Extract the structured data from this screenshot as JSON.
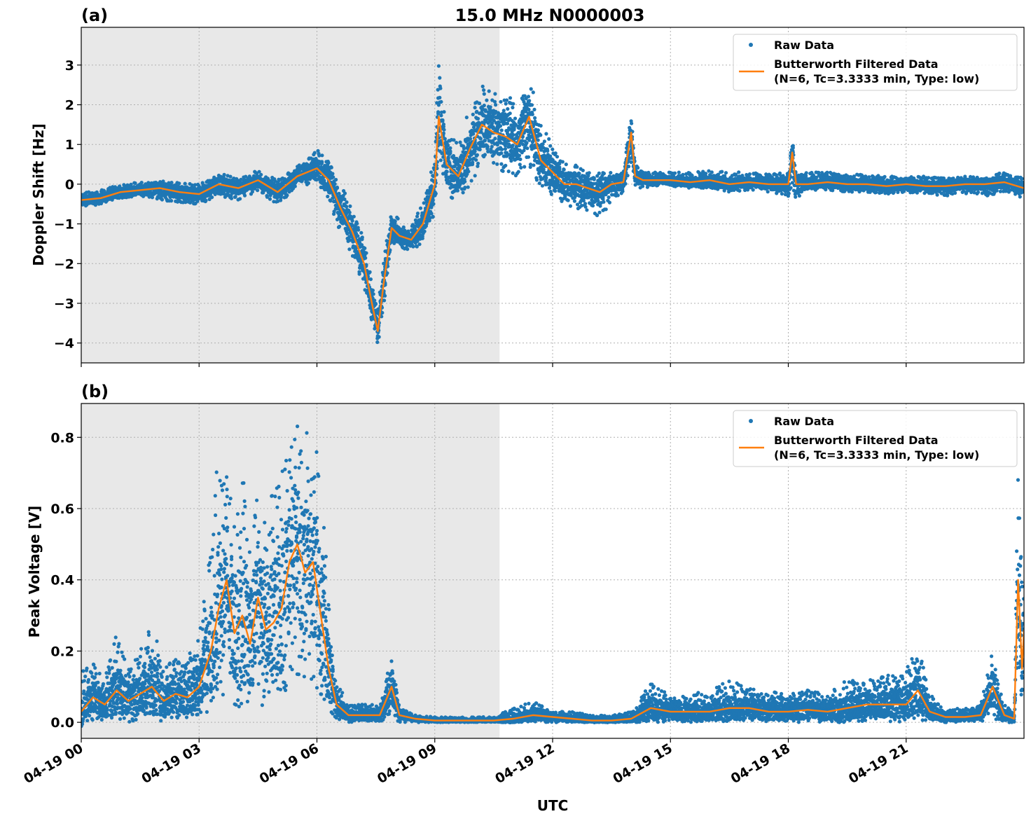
{
  "figure": {
    "title": "15.0 MHz N0000003",
    "xlabel": "UTC",
    "x_tick_labels": [
      "04-19 00",
      "04-19 03",
      "04-19 06",
      "04-19 09",
      "04-19 12",
      "04-19 15",
      "04-19 18",
      "04-19 21"
    ],
    "colors": {
      "raw": "#1f77b4",
      "filtered": "#ff7f0e",
      "shade": "#e8e8e8",
      "grid": "#b0b0b0"
    }
  },
  "chart_data": [
    {
      "type": "scatter",
      "panel_label": "(a)",
      "ylabel": "Doppler Shift [Hz]",
      "xlim_hours_utc": [
        0,
        24
      ],
      "ylim": [
        -4.5,
        3.95
      ],
      "y_ticks": [
        -4,
        -3,
        -2,
        -1,
        0,
        1,
        2,
        3
      ],
      "y_tick_labels": [
        "−4",
        "−3",
        "−2",
        "−1",
        "0",
        "1",
        "2",
        "3"
      ],
      "grid": true,
      "legend_position": "top-right",
      "shaded_region_hours": [
        0,
        10.65
      ],
      "legend": {
        "raw": "Raw Data",
        "filtered_line1": "Butterworth Filtered Data",
        "filtered_line2": "(N=6, Tc=3.3333 min, Type: low)"
      },
      "series": [
        {
          "name": "Butterworth Filtered Data",
          "kind": "line",
          "x": [
            0,
            0.5,
            1,
            1.5,
            2,
            2.5,
            3,
            3.5,
            4,
            4.5,
            5,
            5.5,
            6,
            6.3,
            6.6,
            6.9,
            7.2,
            7.4,
            7.55,
            7.7,
            7.9,
            8.1,
            8.4,
            8.7,
            9.0,
            9.1,
            9.3,
            9.6,
            9.9,
            10.2,
            10.5,
            10.8,
            11.1,
            11.4,
            11.7,
            12.0,
            12.3,
            12.6,
            12.9,
            13.2,
            13.5,
            13.8,
            14.0,
            14.1,
            14.3,
            14.6,
            15,
            15.5,
            16,
            16.5,
            17,
            17.5,
            18,
            18.1,
            18.2,
            18.5,
            19,
            19.5,
            20,
            20.5,
            21,
            21.5,
            22,
            22.5,
            23,
            23.5,
            24
          ],
          "y": [
            -0.4,
            -0.35,
            -0.2,
            -0.15,
            -0.1,
            -0.2,
            -0.25,
            0.0,
            -0.1,
            0.1,
            -0.2,
            0.2,
            0.4,
            0.1,
            -0.6,
            -1.2,
            -2.0,
            -3.0,
            -3.7,
            -2.5,
            -1.1,
            -1.3,
            -1.4,
            -1.0,
            0.0,
            1.7,
            0.5,
            0.2,
            0.9,
            1.5,
            1.3,
            1.2,
            1.0,
            1.7,
            0.6,
            0.3,
            0.0,
            0.0,
            -0.1,
            -0.2,
            0.0,
            0.05,
            1.3,
            0.2,
            0.1,
            0.1,
            0.1,
            0.05,
            0.1,
            0.0,
            0.05,
            0.0,
            0.0,
            0.8,
            0.0,
            0.0,
            0.05,
            0.0,
            0.0,
            -0.05,
            0.0,
            -0.05,
            -0.05,
            0.0,
            0.0,
            0.05,
            -0.1
          ]
        },
        {
          "name": "Raw Data",
          "kind": "scatter-band",
          "x": [
            0,
            0.5,
            1,
            1.5,
            2,
            2.5,
            3,
            3.5,
            4,
            4.5,
            5,
            5.5,
            6,
            6.3,
            6.6,
            6.9,
            7.2,
            7.4,
            7.55,
            7.7,
            7.9,
            8.1,
            8.4,
            8.7,
            9.0,
            9.1,
            9.3,
            9.6,
            9.9,
            10.2,
            10.5,
            10.8,
            11.1,
            11.4,
            11.7,
            12.0,
            12.3,
            12.6,
            12.9,
            13.2,
            13.5,
            13.8,
            14.0,
            14.1,
            14.3,
            14.6,
            15,
            15.5,
            16,
            16.5,
            17,
            17.5,
            18,
            18.1,
            18.2,
            18.5,
            19,
            19.5,
            20,
            20.5,
            21,
            21.5,
            22,
            22.5,
            23,
            23.5,
            24
          ],
          "y_low": [
            -0.6,
            -0.5,
            -0.35,
            -0.3,
            -0.4,
            -0.5,
            -0.5,
            -0.3,
            -0.4,
            -0.2,
            -0.5,
            -0.1,
            0.0,
            -0.5,
            -1.2,
            -1.8,
            -2.6,
            -3.5,
            -4.1,
            -3.1,
            -1.5,
            -1.6,
            -1.7,
            -1.5,
            -0.7,
            0.7,
            -0.3,
            -0.5,
            0.0,
            0.5,
            0.4,
            0.3,
            0.2,
            0.5,
            -0.2,
            -0.3,
            -0.5,
            -0.6,
            -0.7,
            -0.9,
            -0.4,
            -0.2,
            0.5,
            -0.1,
            -0.1,
            -0.05,
            -0.05,
            -0.1,
            -0.1,
            -0.2,
            -0.15,
            -0.2,
            -0.3,
            0.0,
            -0.4,
            -0.15,
            -0.15,
            -0.2,
            -0.2,
            -0.25,
            -0.2,
            -0.25,
            -0.3,
            -0.25,
            -0.3,
            -0.2,
            -0.35
          ],
          "y_high": [
            -0.2,
            -0.15,
            0.0,
            0.05,
            0.1,
            0.05,
            0.0,
            0.3,
            0.15,
            0.35,
            0.1,
            0.45,
            0.9,
            0.6,
            0.0,
            -0.6,
            -1.4,
            -2.4,
            -3.2,
            -1.8,
            -0.7,
            -0.9,
            -1.1,
            -0.4,
            0.8,
            3.4,
            1.3,
            1.0,
            2.0,
            2.5,
            2.4,
            2.3,
            2.0,
            2.7,
            1.6,
            1.0,
            0.5,
            0.5,
            0.3,
            0.3,
            0.3,
            0.3,
            1.8,
            0.5,
            0.3,
            0.3,
            0.3,
            0.3,
            0.35,
            0.3,
            0.3,
            0.25,
            0.3,
            1.25,
            0.3,
            0.3,
            0.3,
            0.25,
            0.25,
            0.2,
            0.2,
            0.2,
            0.2,
            0.2,
            0.2,
            0.3,
            0.15
          ]
        }
      ]
    },
    {
      "type": "scatter",
      "panel_label": "(b)",
      "ylabel": "Peak Voltage [V]",
      "xlim_hours_utc": [
        0,
        24
      ],
      "ylim": [
        -0.045,
        0.895
      ],
      "y_ticks": [
        0.0,
        0.2,
        0.4,
        0.6,
        0.8
      ],
      "y_tick_labels": [
        "0.0",
        "0.2",
        "0.4",
        "0.6",
        "0.8"
      ],
      "grid": true,
      "legend_position": "top-right",
      "shaded_region_hours": [
        0,
        10.65
      ],
      "legend": {
        "raw": "Raw Data",
        "filtered_line1": "Butterworth Filtered Data",
        "filtered_line2": "(N=6, Tc=3.3333 min, Type: low)"
      },
      "series": [
        {
          "name": "Butterworth Filtered Data",
          "kind": "line",
          "x": [
            0,
            0.3,
            0.6,
            0.9,
            1.2,
            1.5,
            1.8,
            2.1,
            2.4,
            2.7,
            3.0,
            3.3,
            3.5,
            3.7,
            3.9,
            4.1,
            4.3,
            4.5,
            4.7,
            4.9,
            5.1,
            5.3,
            5.5,
            5.7,
            5.9,
            6.1,
            6.3,
            6.5,
            6.8,
            7.2,
            7.6,
            7.9,
            8.1,
            8.5,
            9.0,
            9.5,
            10.0,
            10.5,
            11.0,
            11.5,
            12.0,
            12.5,
            13.0,
            13.5,
            14.0,
            14.5,
            15.0,
            15.5,
            16.0,
            16.5,
            17.0,
            17.5,
            18.0,
            18.5,
            19.0,
            19.5,
            20.0,
            20.5,
            21.0,
            21.3,
            21.6,
            22.0,
            22.5,
            22.9,
            23.2,
            23.5,
            23.75,
            23.85,
            23.95,
            24.0
          ],
          "y": [
            0.03,
            0.07,
            0.05,
            0.09,
            0.06,
            0.08,
            0.1,
            0.06,
            0.08,
            0.07,
            0.1,
            0.2,
            0.32,
            0.4,
            0.25,
            0.3,
            0.22,
            0.35,
            0.26,
            0.28,
            0.32,
            0.45,
            0.5,
            0.42,
            0.45,
            0.3,
            0.15,
            0.05,
            0.02,
            0.02,
            0.02,
            0.1,
            0.02,
            0.01,
            0.005,
            0.005,
            0.005,
            0.005,
            0.01,
            0.02,
            0.015,
            0.01,
            0.005,
            0.005,
            0.01,
            0.04,
            0.03,
            0.03,
            0.03,
            0.04,
            0.04,
            0.03,
            0.03,
            0.035,
            0.03,
            0.04,
            0.05,
            0.05,
            0.05,
            0.09,
            0.03,
            0.015,
            0.015,
            0.02,
            0.1,
            0.02,
            0.01,
            0.4,
            0.15,
            0.26
          ]
        },
        {
          "name": "Raw Data",
          "kind": "scatter-band",
          "x": [
            0,
            0.3,
            0.6,
            0.9,
            1.2,
            1.5,
            1.8,
            2.1,
            2.4,
            2.7,
            3.0,
            3.3,
            3.5,
            3.7,
            3.9,
            4.1,
            4.3,
            4.5,
            4.7,
            4.9,
            5.1,
            5.3,
            5.5,
            5.7,
            5.9,
            6.1,
            6.3,
            6.5,
            6.8,
            7.2,
            7.6,
            7.9,
            8.1,
            8.5,
            9.0,
            9.5,
            10.0,
            10.5,
            11.0,
            11.5,
            12.0,
            12.5,
            13.0,
            13.5,
            14.0,
            14.5,
            15.0,
            15.5,
            16.0,
            16.5,
            17.0,
            17.5,
            18.0,
            18.5,
            19.0,
            19.5,
            20.0,
            20.5,
            21.0,
            21.3,
            21.6,
            22.0,
            22.5,
            22.9,
            23.2,
            23.5,
            23.75,
            23.85,
            23.95,
            24.0
          ],
          "y_low": [
            0.0,
            0.0,
            0.0,
            0.01,
            0.0,
            0.01,
            0.01,
            0.0,
            0.01,
            0.01,
            0.01,
            0.03,
            0.05,
            0.07,
            0.03,
            0.05,
            0.03,
            0.05,
            0.04,
            0.05,
            0.06,
            0.1,
            0.13,
            0.1,
            0.1,
            0.06,
            0.03,
            0.01,
            0.0,
            0.0,
            0.0,
            0.02,
            0.0,
            0.0,
            0.0,
            0.0,
            0.0,
            0.0,
            0.0,
            0.0,
            0.0,
            0.0,
            0.0,
            0.0,
            0.0,
            0.0,
            0.0,
            0.0,
            0.0,
            0.0,
            0.0,
            0.0,
            0.0,
            0.0,
            0.0,
            0.0,
            0.0,
            0.0,
            0.0,
            0.01,
            0.0,
            0.0,
            0.0,
            0.0,
            0.01,
            0.0,
            0.0,
            0.05,
            0.01,
            0.05
          ],
          "y_high": [
            0.15,
            0.17,
            0.13,
            0.25,
            0.15,
            0.2,
            0.3,
            0.15,
            0.2,
            0.18,
            0.25,
            0.5,
            0.78,
            0.72,
            0.55,
            0.73,
            0.5,
            0.65,
            0.6,
            0.68,
            0.75,
            0.83,
            0.85,
            0.83,
            0.82,
            0.7,
            0.35,
            0.12,
            0.05,
            0.05,
            0.05,
            0.19,
            0.04,
            0.02,
            0.015,
            0.015,
            0.015,
            0.015,
            0.04,
            0.06,
            0.03,
            0.03,
            0.02,
            0.02,
            0.03,
            0.11,
            0.08,
            0.08,
            0.09,
            0.12,
            0.1,
            0.09,
            0.08,
            0.09,
            0.08,
            0.12,
            0.12,
            0.13,
            0.15,
            0.22,
            0.08,
            0.04,
            0.04,
            0.05,
            0.2,
            0.05,
            0.03,
            0.79,
            0.4,
            0.45
          ]
        }
      ]
    }
  ]
}
